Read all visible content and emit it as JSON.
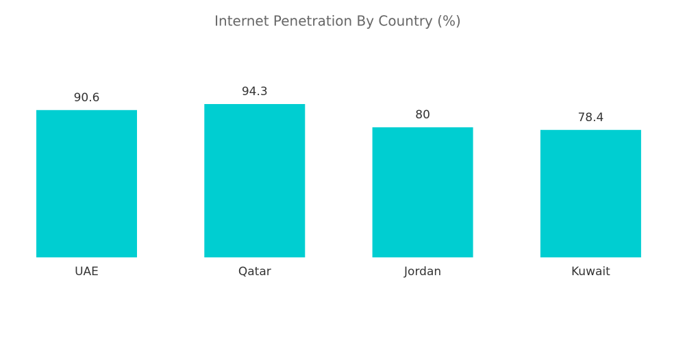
{
  "chart_data": {
    "type": "bar",
    "title": "Internet Penetration By Country (%)",
    "categories": [
      "UAE",
      "Qatar",
      "Jordan",
      "Kuwait"
    ],
    "values": [
      90.6,
      94.3,
      80,
      78.4
    ],
    "color": "#00ced1"
  }
}
